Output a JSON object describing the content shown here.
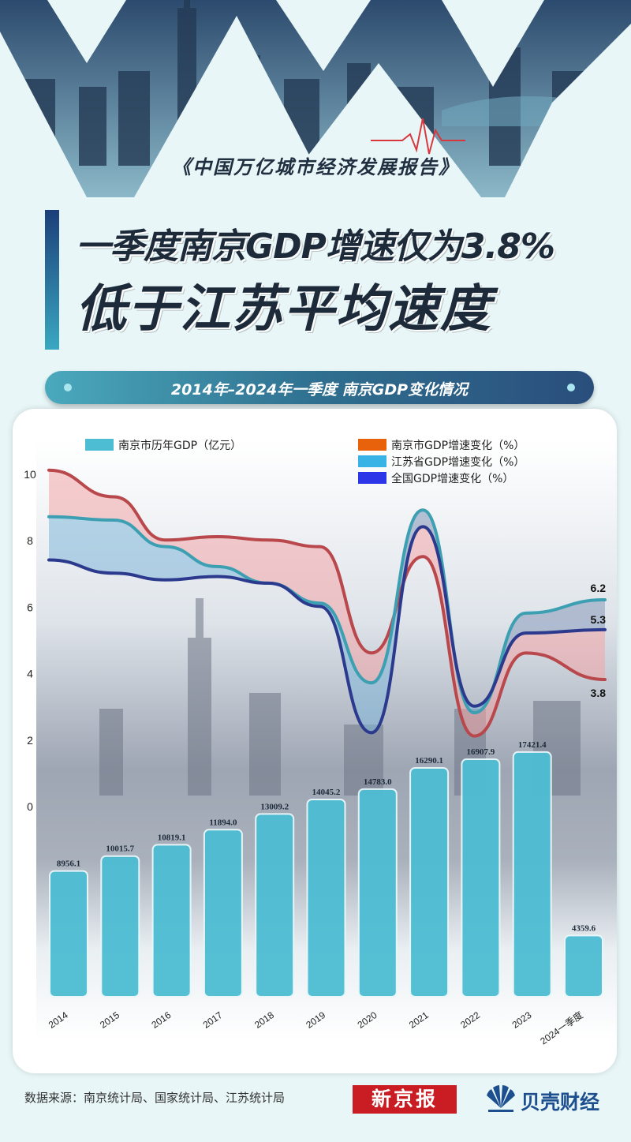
{
  "header": {
    "report_title": "《中国万亿城市经济发展报告》",
    "headline_line1": "一季度南京GDP增速仅为3.8%",
    "headline_line2": "低于江苏平均速度"
  },
  "chart_section": {
    "title": "2014年–2024年一季度 南京GDP变化情况"
  },
  "chart_data": {
    "type": "bar",
    "categories": [
      "2014",
      "2015",
      "2016",
      "2017",
      "2018",
      "2019",
      "2020",
      "2021",
      "2022",
      "2023",
      "2024一季度"
    ],
    "bar_series": {
      "name": "南京市历年GDP（亿元）",
      "color": "#4dbdd3",
      "values": [
        8956.1,
        10015.7,
        10819.1,
        11894.0,
        13009.2,
        14045.2,
        14783.0,
        16290.1,
        16907.9,
        17421.4,
        4359.6
      ],
      "labels": [
        "8956.1",
        "10015.7",
        "10819.1",
        "11894.0",
        "13009.2",
        "14045.2",
        "14783.0",
        "16290.1",
        "16907.9",
        "17421.4",
        "4359.6"
      ]
    },
    "line_series": [
      {
        "name": "南京市GDP增速变化（%）",
        "legend_color": "#e8620c",
        "line_color": "#b8484c",
        "values": [
          10.1,
          9.3,
          8.0,
          8.1,
          8.0,
          7.8,
          4.6,
          7.5,
          2.1,
          4.6,
          3.8
        ]
      },
      {
        "name": "江苏省GDP增速变化（%）",
        "legend_color": "#39b2e6",
        "line_color": "#3d9fb2",
        "values": [
          8.7,
          8.6,
          7.8,
          7.2,
          6.7,
          6.1,
          3.7,
          8.9,
          2.8,
          5.8,
          6.2
        ]
      },
      {
        "name": "全国GDP增速变化（%）",
        "legend_color": "#2d35e8",
        "line_color": "#2c3a8e",
        "values": [
          7.4,
          7.0,
          6.8,
          6.9,
          6.7,
          6.0,
          2.2,
          8.4,
          3.0,
          5.2,
          5.3
        ]
      }
    ],
    "end_labels": [
      "6.2",
      "5.3",
      "3.8"
    ],
    "y_ticks": [
      "10",
      "8",
      "6",
      "4",
      "2",
      "0"
    ],
    "ylim": [
      0,
      10
    ]
  },
  "footer": {
    "source": "数据来源：南京统计局、国家统计局、江苏统计局",
    "brand1": "新京报",
    "brand2": "贝壳财经"
  },
  "colors": {
    "accent_dark": "#2a4e7c",
    "accent_teal": "#4aa9bd",
    "brand_red": "#c91d23",
    "brand_blue": "#1d4f8f"
  }
}
